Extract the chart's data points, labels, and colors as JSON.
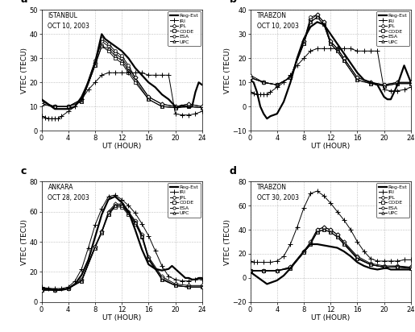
{
  "subplots": [
    {
      "label": "a",
      "title": "ISTANBUL\nOCT 10, 2003",
      "ylim": [
        0,
        50
      ],
      "yticks": [
        0,
        10,
        20,
        30,
        40,
        50
      ],
      "reg_est_x": [
        0,
        0.5,
        1,
        1.5,
        2,
        2.5,
        3,
        3.5,
        4,
        5,
        6,
        7,
        8,
        9,
        9.5,
        10,
        11,
        12,
        13,
        14,
        15,
        16,
        17,
        18,
        19,
        20,
        20.3,
        20.7,
        21,
        21.3,
        21.7,
        22,
        22.5,
        23,
        23.5,
        24
      ],
      "reg_est": [
        13,
        12,
        11,
        10,
        9,
        9,
        9,
        9,
        9,
        10,
        14,
        20,
        28,
        40,
        38,
        37,
        35,
        33,
        30,
        26,
        23,
        20,
        18,
        15,
        13,
        10,
        9.5,
        10,
        10.5,
        10,
        10,
        9.5,
        10,
        16,
        20,
        19
      ],
      "iri_x": [
        0,
        0.5,
        1,
        1.5,
        2,
        2.5,
        3,
        4,
        5,
        6,
        7,
        8,
        9,
        10,
        11,
        12,
        13,
        14,
        15,
        16,
        17,
        18,
        19,
        20,
        21,
        22,
        23,
        24
      ],
      "iri": [
        6,
        5.5,
        5,
        5,
        5,
        5,
        6,
        8,
        10,
        13,
        17,
        20,
        23,
        24,
        24,
        24,
        24,
        24,
        24,
        23,
        23,
        23,
        23,
        7,
        6.5,
        6.5,
        7,
        8
      ],
      "jpl_x": [
        0,
        2,
        4,
        6,
        8,
        9,
        10,
        11,
        12,
        13,
        14,
        16,
        18,
        20,
        22,
        24
      ],
      "jpl": [
        11,
        10,
        10,
        13,
        28,
        37,
        35,
        32,
        30,
        26,
        22,
        14,
        11,
        10,
        11,
        10
      ],
      "code_x": [
        0,
        2,
        4,
        6,
        8,
        9,
        10,
        11,
        12,
        13,
        14,
        16,
        18,
        20,
        22,
        24
      ],
      "code": [
        11,
        10,
        10,
        12,
        27,
        35,
        33,
        30,
        28,
        24,
        20,
        13,
        10,
        9.5,
        10,
        9.5
      ],
      "esa_x": [
        0,
        2,
        4,
        6,
        8,
        9,
        10,
        11,
        12,
        13,
        14,
        16,
        18,
        20,
        22,
        24
      ],
      "esa": [
        11,
        10,
        10,
        13,
        29,
        38,
        36,
        33,
        31,
        27,
        22,
        14,
        11,
        10,
        11,
        10
      ],
      "upc_x": [
        0,
        2,
        4,
        6,
        8,
        9,
        10,
        11,
        12,
        13,
        14,
        16,
        18,
        20,
        22,
        24
      ],
      "upc": [
        12,
        10,
        10,
        12,
        27,
        35,
        34,
        31,
        29,
        25,
        21,
        13,
        10,
        9.5,
        10,
        9.5
      ]
    },
    {
      "label": "b",
      "title": "TRABZON\nOCT 10, 2003",
      "ylim": [
        -10,
        40
      ],
      "yticks": [
        -10,
        0,
        10,
        20,
        30,
        40
      ],
      "reg_est_x": [
        0,
        0.5,
        1,
        1.5,
        2,
        2.5,
        3,
        4,
        5,
        6,
        7,
        8,
        9,
        10,
        11,
        12,
        13,
        14,
        15,
        16,
        17,
        18,
        19,
        20,
        20.5,
        21,
        22,
        23,
        24
      ],
      "reg_est": [
        11,
        10,
        6,
        0,
        -3,
        -5,
        -4,
        -3,
        2,
        10,
        20,
        28,
        33,
        35,
        34,
        30,
        26,
        22,
        18,
        14,
        11,
        10,
        9,
        4,
        3,
        3,
        9,
        17,
        10
      ],
      "iri_x": [
        0,
        0.5,
        1,
        1.5,
        2,
        2.5,
        3,
        4,
        5,
        6,
        7,
        8,
        9,
        10,
        11,
        12,
        13,
        14,
        15,
        16,
        17,
        18,
        19,
        20,
        21,
        22,
        23,
        24
      ],
      "iri": [
        6,
        5.5,
        5,
        5,
        5,
        5,
        6,
        8,
        10,
        13,
        17,
        20,
        23,
        24,
        24,
        24,
        24,
        24,
        24,
        23,
        23,
        23,
        23,
        7,
        6.5,
        6.5,
        7,
        8
      ],
      "jpl_x": [
        0,
        2,
        4,
        6,
        8,
        9,
        10,
        11,
        12,
        13,
        14,
        16,
        18,
        20,
        22,
        24
      ],
      "jpl": [
        12,
        10,
        9,
        12,
        27,
        36,
        38,
        35,
        27,
        24,
        20,
        12,
        10,
        9,
        10,
        10
      ],
      "code_x": [
        0,
        2,
        4,
        6,
        8,
        9,
        10,
        11,
        12,
        13,
        14,
        16,
        18,
        20,
        22,
        24
      ],
      "code": [
        12,
        10,
        9,
        12,
        26,
        35,
        37,
        34,
        26,
        23,
        19,
        11,
        9.5,
        8.5,
        9.5,
        9.5
      ],
      "esa_x": [
        0,
        2,
        4,
        6,
        8,
        9,
        10,
        11,
        12,
        13,
        14,
        16,
        18,
        20,
        22,
        24
      ],
      "esa": [
        12,
        10,
        9,
        12,
        27,
        37,
        38,
        35,
        27,
        24,
        20,
        12,
        10,
        9,
        10,
        10
      ],
      "upc_x": [
        0,
        2,
        4,
        6,
        8,
        9,
        10,
        11,
        12,
        13,
        14,
        16,
        18,
        20,
        22,
        24
      ],
      "upc": [
        13,
        10,
        9,
        12,
        26,
        35,
        37,
        34,
        26,
        23,
        19,
        11,
        9.5,
        8.5,
        9.5,
        9.5
      ]
    },
    {
      "label": "c",
      "title": "ANKARA\nOCT 28, 2003",
      "ylim": [
        0,
        80
      ],
      "yticks": [
        0,
        20,
        40,
        60,
        80
      ],
      "reg_est_x": [
        0,
        0.5,
        1,
        2,
        3,
        4,
        5,
        6,
        7,
        8,
        9,
        10,
        11,
        12,
        13,
        14,
        15,
        16,
        17,
        18,
        19,
        19.5,
        20,
        20.5,
        21,
        21.5,
        22,
        22.5,
        23,
        23.5,
        24
      ],
      "reg_est": [
        10,
        9,
        9,
        8,
        8,
        9,
        12,
        18,
        28,
        43,
        58,
        68,
        70,
        66,
        60,
        48,
        35,
        25,
        22,
        21,
        22,
        24,
        22,
        20,
        18,
        16,
        16,
        15,
        15,
        16,
        16
      ],
      "iri_x": [
        0,
        1,
        2,
        3,
        4,
        5,
        6,
        7,
        8,
        9,
        10,
        11,
        12,
        13,
        14,
        15,
        16,
        17,
        18,
        19,
        20,
        21,
        22,
        23,
        24
      ],
      "iri": [
        10,
        9,
        9,
        9,
        10,
        14,
        22,
        36,
        51,
        62,
        70,
        71,
        68,
        64,
        59,
        52,
        44,
        34,
        24,
        17,
        15,
        14,
        14,
        15,
        15
      ],
      "jpl_x": [
        0,
        2,
        4,
        6,
        8,
        9,
        10,
        11,
        12,
        13,
        14,
        15,
        16,
        18,
        20,
        22,
        24
      ],
      "jpl": [
        8,
        8,
        9,
        15,
        37,
        47,
        60,
        65,
        65,
        60,
        54,
        45,
        30,
        17,
        12,
        11,
        11
      ],
      "code_x": [
        0,
        2,
        4,
        6,
        8,
        9,
        10,
        11,
        12,
        13,
        14,
        15,
        16,
        18,
        20,
        22,
        24
      ],
      "code": [
        8,
        8,
        9,
        14,
        36,
        46,
        58,
        63,
        63,
        58,
        52,
        43,
        28,
        15,
        11,
        10,
        10
      ],
      "esa_x": [
        0,
        2,
        4,
        6,
        8,
        9,
        10,
        11,
        12,
        13,
        14,
        15,
        16,
        18,
        20,
        22,
        24
      ],
      "esa": [
        8,
        8,
        9,
        14,
        37,
        46,
        59,
        64,
        64,
        59,
        53,
        44,
        29,
        16,
        11,
        10,
        10
      ],
      "upc_x": [
        0,
        2,
        4,
        6,
        8,
        9,
        10,
        11,
        12,
        13,
        14,
        15,
        16,
        18,
        20,
        22,
        24
      ],
      "upc": [
        8,
        8,
        9,
        14,
        36,
        47,
        58,
        64,
        64,
        59,
        53,
        44,
        29,
        15,
        11,
        10,
        10
      ]
    },
    {
      "label": "d",
      "title": "TRABZON\nOCT 30, 2003",
      "ylim": [
        -20,
        80
      ],
      "yticks": [
        -20,
        0,
        20,
        40,
        60,
        80
      ],
      "reg_est_x": [
        0,
        0.5,
        1,
        1.5,
        2,
        2.5,
        3,
        4,
        5,
        6,
        7,
        8,
        9,
        10,
        11,
        12,
        13,
        14,
        15,
        16,
        17,
        18,
        19,
        20,
        20.5,
        21,
        22,
        23,
        24
      ],
      "reg_est": [
        5,
        3,
        1,
        -1,
        -3,
        -5,
        -4,
        -2,
        2,
        8,
        15,
        22,
        28,
        28,
        27,
        26,
        25,
        22,
        18,
        13,
        10,
        8,
        7,
        8,
        8,
        7,
        7,
        7,
        7
      ],
      "iri_x": [
        0,
        0.5,
        1,
        2,
        3,
        4,
        5,
        6,
        7,
        8,
        9,
        10,
        11,
        12,
        13,
        14,
        15,
        16,
        17,
        18,
        19,
        20,
        21,
        22,
        23,
        24
      ],
      "iri": [
        14,
        13,
        13,
        13,
        13,
        14,
        18,
        28,
        42,
        58,
        70,
        72,
        68,
        62,
        55,
        48,
        40,
        30,
        22,
        16,
        14,
        14,
        14,
        14,
        15,
        15
      ],
      "jpl_x": [
        0,
        2,
        4,
        6,
        8,
        9,
        10,
        11,
        12,
        13,
        14,
        16,
        18,
        20,
        22,
        24
      ],
      "jpl": [
        6,
        6,
        6,
        9,
        22,
        30,
        40,
        42,
        40,
        36,
        30,
        18,
        12,
        10,
        10,
        9
      ],
      "code_x": [
        0,
        2,
        4,
        6,
        8,
        9,
        10,
        11,
        12,
        13,
        14,
        16,
        18,
        20,
        22,
        24
      ],
      "code": [
        6,
        6,
        6,
        8,
        21,
        28,
        38,
        40,
        38,
        34,
        28,
        16,
        11,
        9,
        9,
        8
      ],
      "esa_x": [
        0,
        2,
        4,
        6,
        8,
        9,
        10,
        11,
        12,
        13,
        14,
        16,
        18,
        20,
        22,
        24
      ],
      "esa": [
        6,
        6,
        6,
        9,
        22,
        29,
        40,
        42,
        40,
        36,
        29,
        17,
        11,
        9,
        9.5,
        8.5
      ],
      "upc_x": [
        0,
        2,
        4,
        6,
        8,
        9,
        10,
        11,
        12,
        13,
        14,
        16,
        18,
        20,
        22,
        24
      ],
      "upc": [
        6,
        6,
        6,
        8,
        21,
        28,
        38,
        40,
        38,
        34,
        28,
        16,
        11,
        9,
        9,
        8
      ]
    }
  ],
  "xlabel": "UT (HOUR)",
  "ylabel": "VTEC (TECU)",
  "xticks": [
    0,
    4,
    8,
    12,
    16,
    20,
    24
  ],
  "legend_labels": [
    "Reg-Est",
    "IRI",
    "JPL",
    "CODE",
    "ESA",
    "UPC"
  ]
}
